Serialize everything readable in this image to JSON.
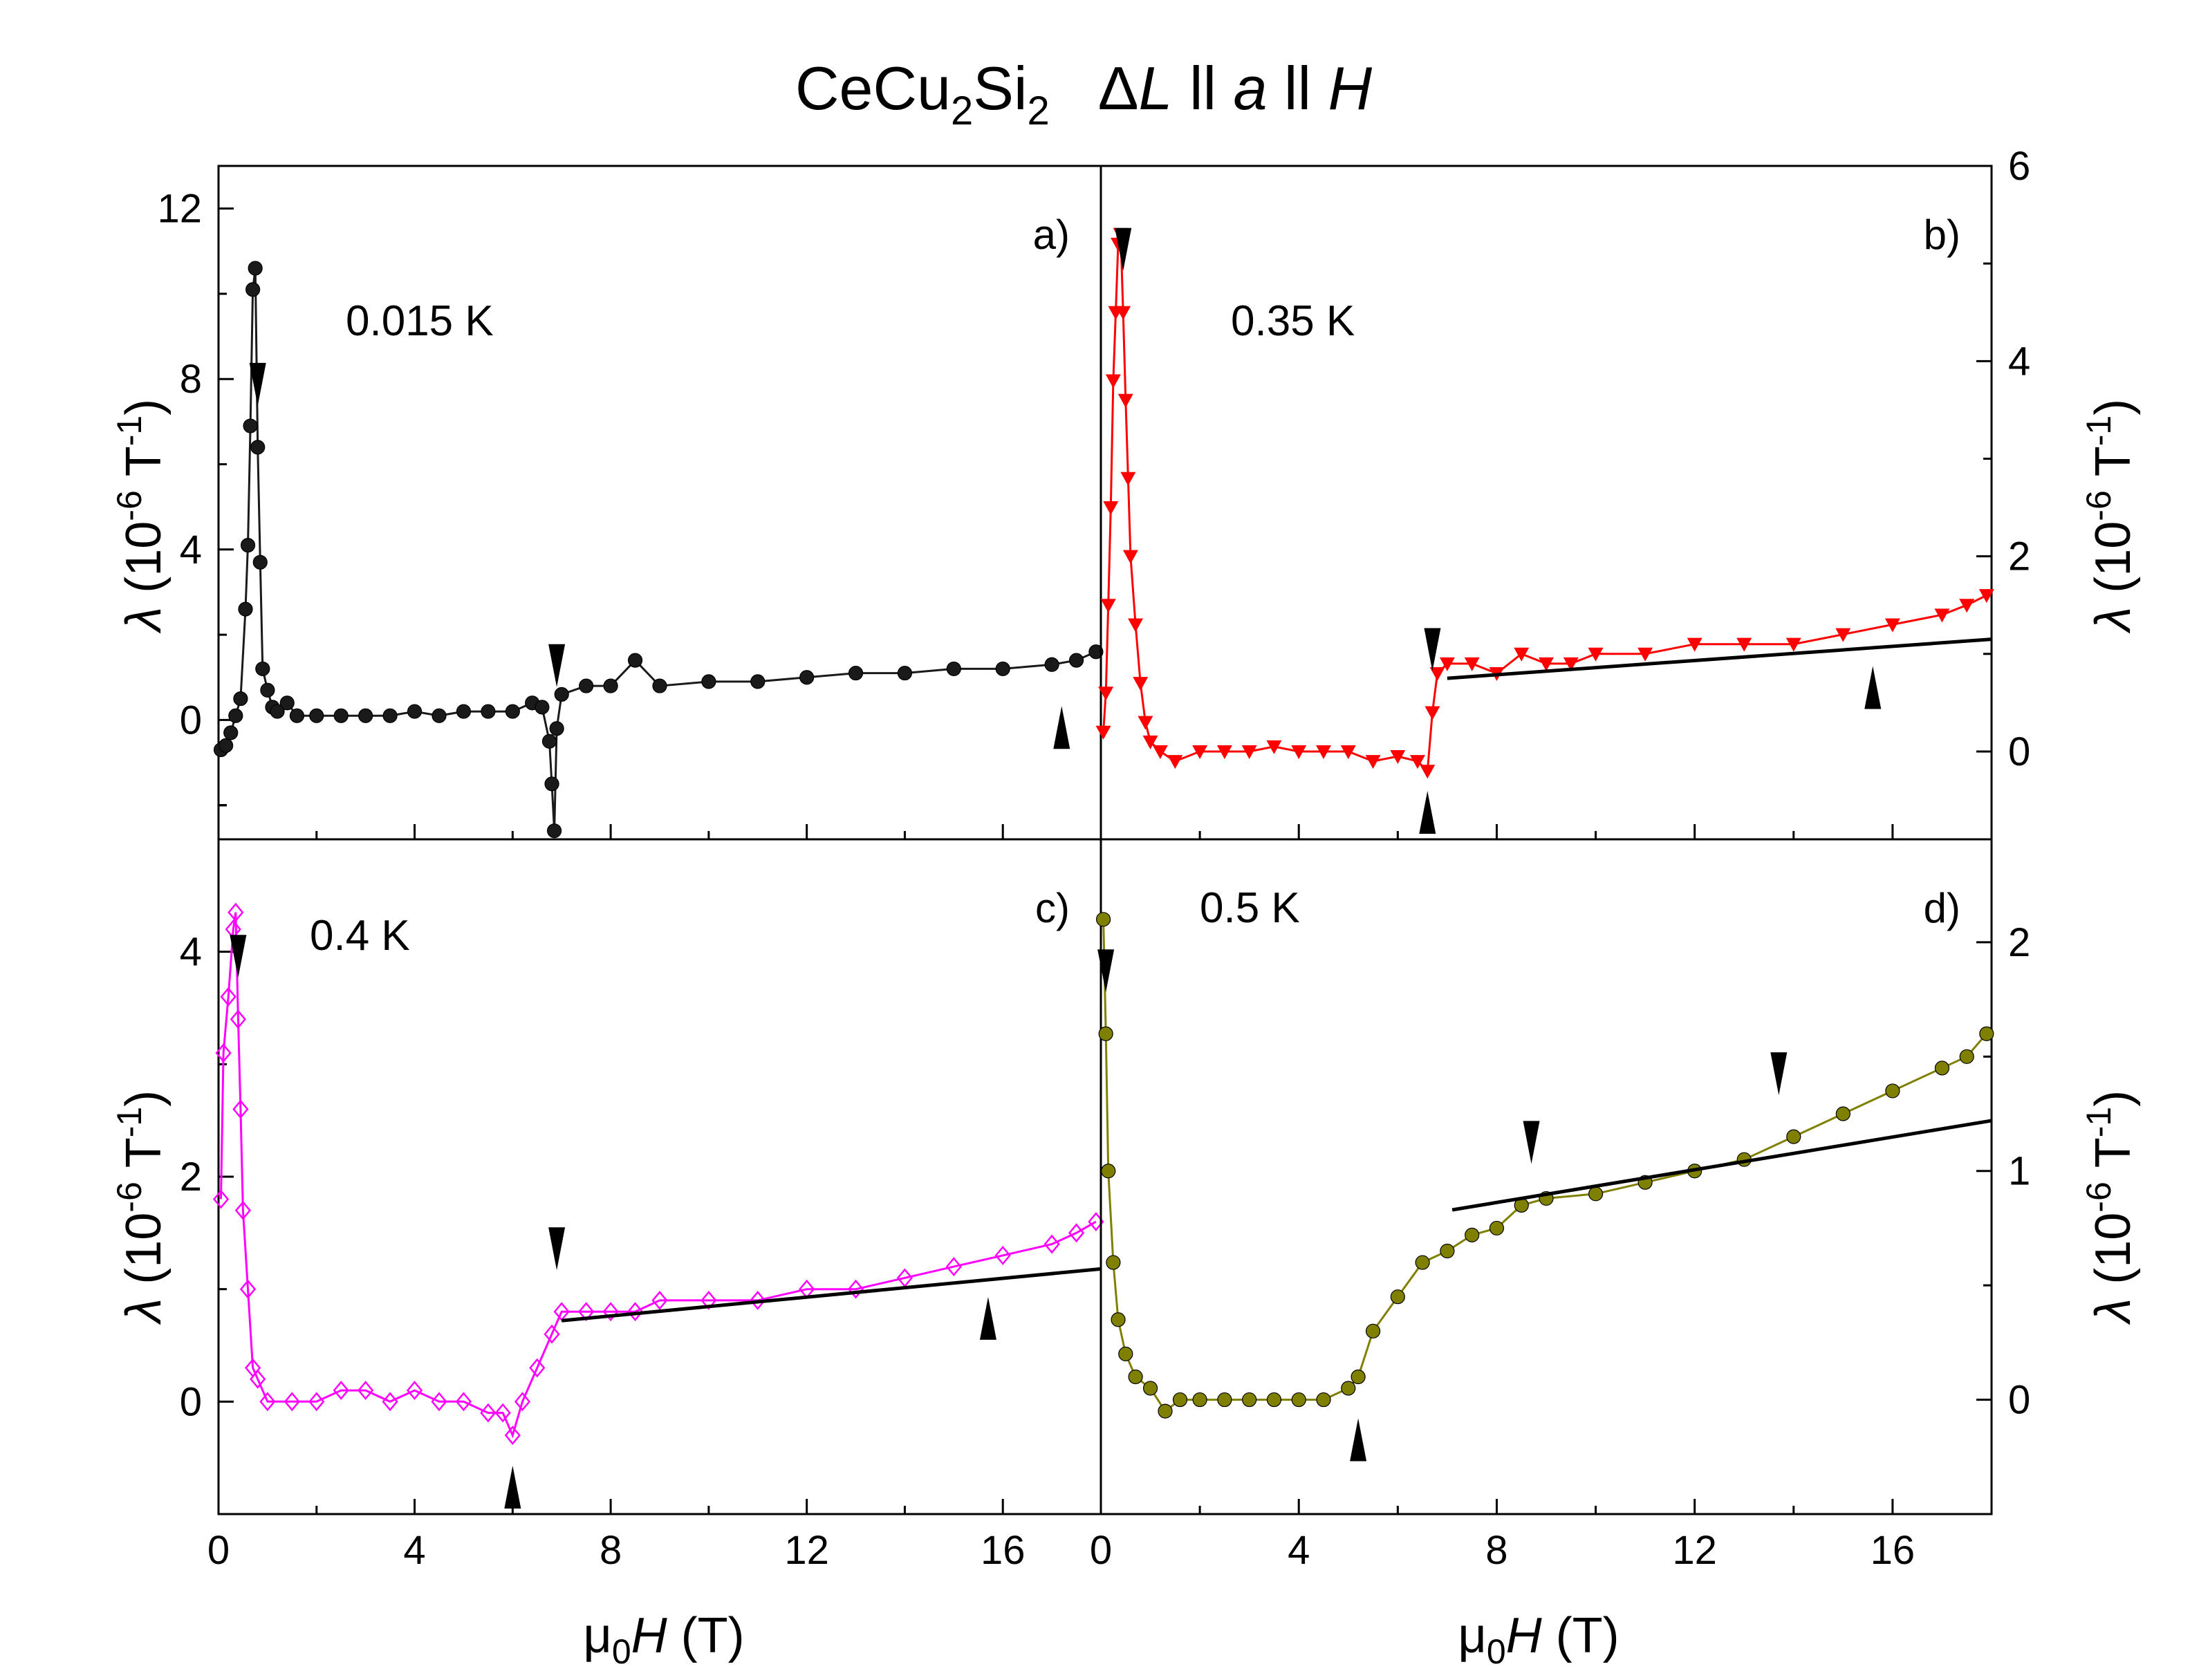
{
  "title": {
    "compound": "CeCu",
    "sub1": "2",
    "si": "Si",
    "sub2": "2",
    "geometry": "ΔL ll a ll H",
    "geometry_parts": [
      "Δ",
      "L",
      " ll ",
      "a",
      " ll ",
      "H"
    ]
  },
  "axes": {
    "xlabel_mu": "μ",
    "xlabel_sub": "0",
    "xlabel_sym": "H",
    "xlabel_unit": " (T)",
    "ylabel_sym": "λ",
    "ylabel_open": " (10",
    "ylabel_exp": "-6",
    "ylabel_unit": " T",
    "ylabel_exp2": "-1",
    "ylabel_close": ")",
    "x_ticks": [
      "0",
      "4",
      "8",
      "12",
      "16"
    ]
  },
  "colors": {
    "a": "#1a1a1a",
    "b": "#ff0000",
    "c": "#ff00ff",
    "d": "#808000",
    "fit": "#000000"
  },
  "chart_data": [
    {
      "panel": "a)",
      "temperature": "0.015 K",
      "type": "scatter",
      "marker": "filled circle",
      "xlabel": "μ0H (T)",
      "ylabel": "λ (10^-6 T^-1)",
      "xlim": [
        0,
        18
      ],
      "ylim": [
        -2.8,
        13
      ],
      "y_ticks": [
        0,
        4,
        8,
        12
      ],
      "series": [
        {
          "name": "0.015 K",
          "points": [
            [
              0.05,
              -0.7
            ],
            [
              0.15,
              -0.6
            ],
            [
              0.25,
              -0.3
            ],
            [
              0.35,
              0.1
            ],
            [
              0.45,
              0.5
            ],
            [
              0.55,
              2.6
            ],
            [
              0.6,
              4.1
            ],
            [
              0.65,
              6.9
            ],
            [
              0.7,
              10.1
            ],
            [
              0.75,
              10.6
            ],
            [
              0.8,
              6.4
            ],
            [
              0.85,
              3.7
            ],
            [
              0.9,
              1.2
            ],
            [
              1.0,
              0.7
            ],
            [
              1.1,
              0.3
            ],
            [
              1.2,
              0.2
            ],
            [
              1.4,
              0.4
            ],
            [
              1.6,
              0.1
            ],
            [
              2.0,
              0.1
            ],
            [
              2.5,
              0.1
            ],
            [
              3.0,
              0.1
            ],
            [
              3.5,
              0.1
            ],
            [
              4.0,
              0.2
            ],
            [
              4.5,
              0.1
            ],
            [
              5.0,
              0.2
            ],
            [
              5.5,
              0.2
            ],
            [
              6.0,
              0.2
            ],
            [
              6.4,
              0.4
            ],
            [
              6.6,
              0.3
            ],
            [
              6.75,
              -0.5
            ],
            [
              6.8,
              -1.5
            ],
            [
              6.85,
              -2.6
            ],
            [
              6.9,
              -0.2
            ],
            [
              7.0,
              0.6
            ],
            [
              7.5,
              0.8
            ],
            [
              8.0,
              0.8
            ],
            [
              8.5,
              1.4
            ],
            [
              9.0,
              0.8
            ],
            [
              10.0,
              0.9
            ],
            [
              11.0,
              0.9
            ],
            [
              12.0,
              1.0
            ],
            [
              13.0,
              1.1
            ],
            [
              14.0,
              1.1
            ],
            [
              15.0,
              1.2
            ],
            [
              16.0,
              1.2
            ],
            [
              17.0,
              1.3
            ],
            [
              17.5,
              1.4
            ],
            [
              17.9,
              1.6
            ]
          ]
        }
      ],
      "arrows": [
        {
          "x": 0.8,
          "dir": "down"
        },
        {
          "x": 6.9,
          "dir": "down"
        },
        {
          "x": 17.2,
          "dir": "up"
        }
      ],
      "fit_line": null
    },
    {
      "panel": "b)",
      "temperature": "0.35 K",
      "type": "scatter",
      "marker": "filled down-triangle",
      "xlabel": "μ0H (T)",
      "ylabel": "λ (10^-6 T^-1)",
      "xlim": [
        0,
        18
      ],
      "ylim": [
        -0.9,
        6
      ],
      "y_ticks": [
        0,
        2,
        4,
        6
      ],
      "series": [
        {
          "name": "0.35 K",
          "points": [
            [
              0.05,
              0.2
            ],
            [
              0.1,
              0.6
            ],
            [
              0.15,
              1.5
            ],
            [
              0.2,
              2.5
            ],
            [
              0.25,
              3.8
            ],
            [
              0.3,
              4.5
            ],
            [
              0.35,
              5.2
            ],
            [
              0.4,
              5.3
            ],
            [
              0.45,
              4.5
            ],
            [
              0.5,
              3.6
            ],
            [
              0.55,
              2.8
            ],
            [
              0.6,
              2.0
            ],
            [
              0.7,
              1.3
            ],
            [
              0.8,
              0.7
            ],
            [
              0.9,
              0.3
            ],
            [
              1.0,
              0.1
            ],
            [
              1.2,
              0.0
            ],
            [
              1.5,
              -0.1
            ],
            [
              2.0,
              0.0
            ],
            [
              2.5,
              0.0
            ],
            [
              3.0,
              0.0
            ],
            [
              3.5,
              0.05
            ],
            [
              4.0,
              0.0
            ],
            [
              4.5,
              0.0
            ],
            [
              5.0,
              0.0
            ],
            [
              5.5,
              -0.1
            ],
            [
              6.0,
              -0.05
            ],
            [
              6.4,
              -0.1
            ],
            [
              6.6,
              -0.2
            ],
            [
              6.7,
              0.4
            ],
            [
              6.8,
              0.8
            ],
            [
              7.0,
              0.9
            ],
            [
              7.5,
              0.9
            ],
            [
              8.0,
              0.8
            ],
            [
              8.5,
              1.0
            ],
            [
              9.0,
              0.9
            ],
            [
              9.5,
              0.9
            ],
            [
              10.0,
              1.0
            ],
            [
              11.0,
              1.0
            ],
            [
              12.0,
              1.1
            ],
            [
              13.0,
              1.1
            ],
            [
              14.0,
              1.1
            ],
            [
              15.0,
              1.2
            ],
            [
              16.0,
              1.3
            ],
            [
              17.0,
              1.4
            ],
            [
              17.5,
              1.5
            ],
            [
              17.9,
              1.6
            ]
          ]
        }
      ],
      "arrows": [
        {
          "x": 0.45,
          "dir": "down"
        },
        {
          "x": 6.7,
          "dir": "down"
        },
        {
          "x": 6.6,
          "dir": "up"
        },
        {
          "x": 15.6,
          "dir": "up"
        }
      ],
      "fit_line": [
        [
          7.0,
          0.75
        ],
        [
          18.0,
          1.15
        ]
      ]
    },
    {
      "panel": "c)",
      "temperature": "0.4 K",
      "type": "scatter",
      "marker": "open diamond",
      "xlabel": "μ0H (T)",
      "ylabel": "λ (10^-6 T^-1)",
      "xlim": [
        0,
        18
      ],
      "ylim": [
        -1,
        5
      ],
      "y_ticks": [
        0,
        2,
        4
      ],
      "series": [
        {
          "name": "0.4 K",
          "points": [
            [
              0.05,
              1.8
            ],
            [
              0.1,
              3.1
            ],
            [
              0.2,
              3.6
            ],
            [
              0.3,
              4.2
            ],
            [
              0.35,
              4.35
            ],
            [
              0.4,
              3.4
            ],
            [
              0.45,
              2.6
            ],
            [
              0.5,
              1.7
            ],
            [
              0.6,
              1.0
            ],
            [
              0.7,
              0.3
            ],
            [
              0.8,
              0.2
            ],
            [
              1.0,
              0.0
            ],
            [
              1.5,
              0.0
            ],
            [
              2.0,
              0.0
            ],
            [
              2.5,
              0.1
            ],
            [
              3.0,
              0.1
            ],
            [
              3.5,
              0.0
            ],
            [
              4.0,
              0.1
            ],
            [
              4.5,
              0.0
            ],
            [
              5.0,
              0.0
            ],
            [
              5.5,
              -0.1
            ],
            [
              5.8,
              -0.1
            ],
            [
              6.0,
              -0.3
            ],
            [
              6.2,
              0.0
            ],
            [
              6.5,
              0.3
            ],
            [
              6.8,
              0.6
            ],
            [
              7.0,
              0.8
            ],
            [
              7.5,
              0.8
            ],
            [
              8.0,
              0.8
            ],
            [
              8.5,
              0.8
            ],
            [
              9.0,
              0.9
            ],
            [
              10.0,
              0.9
            ],
            [
              11.0,
              0.9
            ],
            [
              12.0,
              1.0
            ],
            [
              13.0,
              1.0
            ],
            [
              14.0,
              1.1
            ],
            [
              15.0,
              1.2
            ],
            [
              16.0,
              1.3
            ],
            [
              17.0,
              1.4
            ],
            [
              17.5,
              1.5
            ],
            [
              17.9,
              1.6
            ]
          ]
        }
      ],
      "arrows": [
        {
          "x": 0.4,
          "dir": "down"
        },
        {
          "x": 6.9,
          "dir": "down"
        },
        {
          "x": 6.0,
          "dir": "up"
        },
        {
          "x": 15.7,
          "dir": "up"
        }
      ],
      "fit_line": [
        [
          7.0,
          0.72
        ],
        [
          18.0,
          1.18
        ]
      ]
    },
    {
      "panel": "d)",
      "temperature": "0.5 K",
      "type": "scatter",
      "marker": "filled circle",
      "xlabel": "μ0H (T)",
      "ylabel": "λ (10^-6 T^-1)",
      "xlim": [
        0,
        18
      ],
      "ylim": [
        -0.5,
        2.45
      ],
      "y_ticks": [
        0,
        1,
        2
      ],
      "series": [
        {
          "name": "0.5 K",
          "points": [
            [
              0.05,
              2.1
            ],
            [
              0.1,
              1.6
            ],
            [
              0.15,
              1.0
            ],
            [
              0.25,
              0.6
            ],
            [
              0.35,
              0.35
            ],
            [
              0.5,
              0.2
            ],
            [
              0.7,
              0.1
            ],
            [
              1.0,
              0.05
            ],
            [
              1.3,
              -0.05
            ],
            [
              1.6,
              0.0
            ],
            [
              2.0,
              0.0
            ],
            [
              2.5,
              0.0
            ],
            [
              3.0,
              0.0
            ],
            [
              3.5,
              0.0
            ],
            [
              4.0,
              0.0
            ],
            [
              4.5,
              0.0
            ],
            [
              5.0,
              0.05
            ],
            [
              5.2,
              0.1
            ],
            [
              5.5,
              0.3
            ],
            [
              6.0,
              0.45
            ],
            [
              6.5,
              0.6
            ],
            [
              7.0,
              0.65
            ],
            [
              7.5,
              0.72
            ],
            [
              8.0,
              0.75
            ],
            [
              8.5,
              0.85
            ],
            [
              9.0,
              0.88
            ],
            [
              10.0,
              0.9
            ],
            [
              11.0,
              0.95
            ],
            [
              12.0,
              1.0
            ],
            [
              13.0,
              1.05
            ],
            [
              14.0,
              1.15
            ],
            [
              15.0,
              1.25
            ],
            [
              16.0,
              1.35
            ],
            [
              17.0,
              1.45
            ],
            [
              17.5,
              1.5
            ],
            [
              17.9,
              1.6
            ]
          ]
        }
      ],
      "arrows": [
        {
          "x": 0.1,
          "dir": "down"
        },
        {
          "x": 8.7,
          "dir": "down"
        },
        {
          "x": 13.7,
          "dir": "down"
        },
        {
          "x": 5.2,
          "dir": "up"
        }
      ],
      "fit_line": [
        [
          7.1,
          0.83
        ],
        [
          18.0,
          1.22
        ]
      ]
    }
  ]
}
